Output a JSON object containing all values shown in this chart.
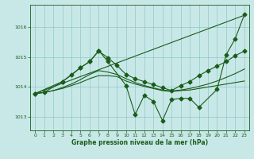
{
  "xlabel": "Graphe pression niveau de la mer (hPa)",
  "bg_color": "#c8e8e8",
  "grid_color": "#90c8c8",
  "line_color": "#1a5c1a",
  "ylim": [
    1012.55,
    1016.75
  ],
  "xlim": [
    -0.5,
    23.5
  ],
  "yticks": [
    1013,
    1014,
    1015,
    1016
  ],
  "xticks": [
    0,
    1,
    2,
    3,
    4,
    5,
    6,
    7,
    8,
    9,
    10,
    11,
    12,
    13,
    14,
    15,
    16,
    17,
    18,
    19,
    20,
    21,
    22,
    23
  ],
  "line_straight": {
    "x": [
      0,
      23
    ],
    "y": [
      1013.78,
      1016.4
    ]
  },
  "line_smooth1": {
    "x": [
      0,
      1,
      2,
      3,
      4,
      5,
      6,
      7,
      8,
      9,
      10,
      11,
      12,
      13,
      14,
      15,
      16,
      17,
      18,
      19,
      20,
      21,
      22,
      23
    ],
    "y": [
      1013.78,
      1013.82,
      1013.88,
      1013.95,
      1014.05,
      1014.15,
      1014.28,
      1014.38,
      1014.38,
      1014.35,
      1014.2,
      1014.1,
      1014.02,
      1013.95,
      1013.88,
      1013.85,
      1013.88,
      1013.9,
      1013.95,
      1014.0,
      1014.05,
      1014.1,
      1014.15,
      1014.2
    ]
  },
  "line_smooth2": {
    "x": [
      0,
      1,
      2,
      3,
      4,
      5,
      6,
      7,
      8,
      9,
      10,
      11,
      12,
      13,
      14,
      15,
      16,
      17,
      18,
      19,
      20,
      21,
      22,
      23
    ],
    "y": [
      1013.78,
      1013.82,
      1013.88,
      1013.98,
      1014.1,
      1014.25,
      1014.42,
      1014.55,
      1014.5,
      1014.42,
      1014.28,
      1014.15,
      1014.05,
      1013.97,
      1013.9,
      1013.87,
      1013.9,
      1013.95,
      1014.02,
      1014.1,
      1014.2,
      1014.32,
      1014.45,
      1014.6
    ]
  },
  "line_marked1": {
    "x": [
      0,
      3,
      4,
      5,
      6,
      7,
      8,
      9,
      10,
      11,
      12,
      13,
      14,
      15,
      16,
      17,
      18,
      19,
      20,
      21,
      22,
      23
    ],
    "y": [
      1013.78,
      1014.18,
      1014.4,
      1014.65,
      1014.85,
      1015.2,
      1014.98,
      1014.72,
      1014.42,
      1014.28,
      1014.18,
      1014.08,
      1013.98,
      1013.88,
      1014.05,
      1014.18,
      1014.38,
      1014.55,
      1014.7,
      1014.85,
      1015.05,
      1015.2
    ]
  },
  "line_marked2": {
    "x": [
      0,
      1,
      3,
      5,
      6,
      7,
      8,
      10,
      11,
      12,
      13,
      14,
      15,
      16,
      17,
      18,
      20,
      21,
      22,
      23
    ],
    "y": [
      1013.78,
      1013.82,
      1014.18,
      1014.65,
      1014.85,
      1015.22,
      1014.85,
      1014.05,
      1013.08,
      1013.72,
      1013.52,
      1012.88,
      1013.58,
      1013.62,
      1013.62,
      1013.32,
      1013.92,
      1015.08,
      1015.62,
      1016.42
    ]
  }
}
